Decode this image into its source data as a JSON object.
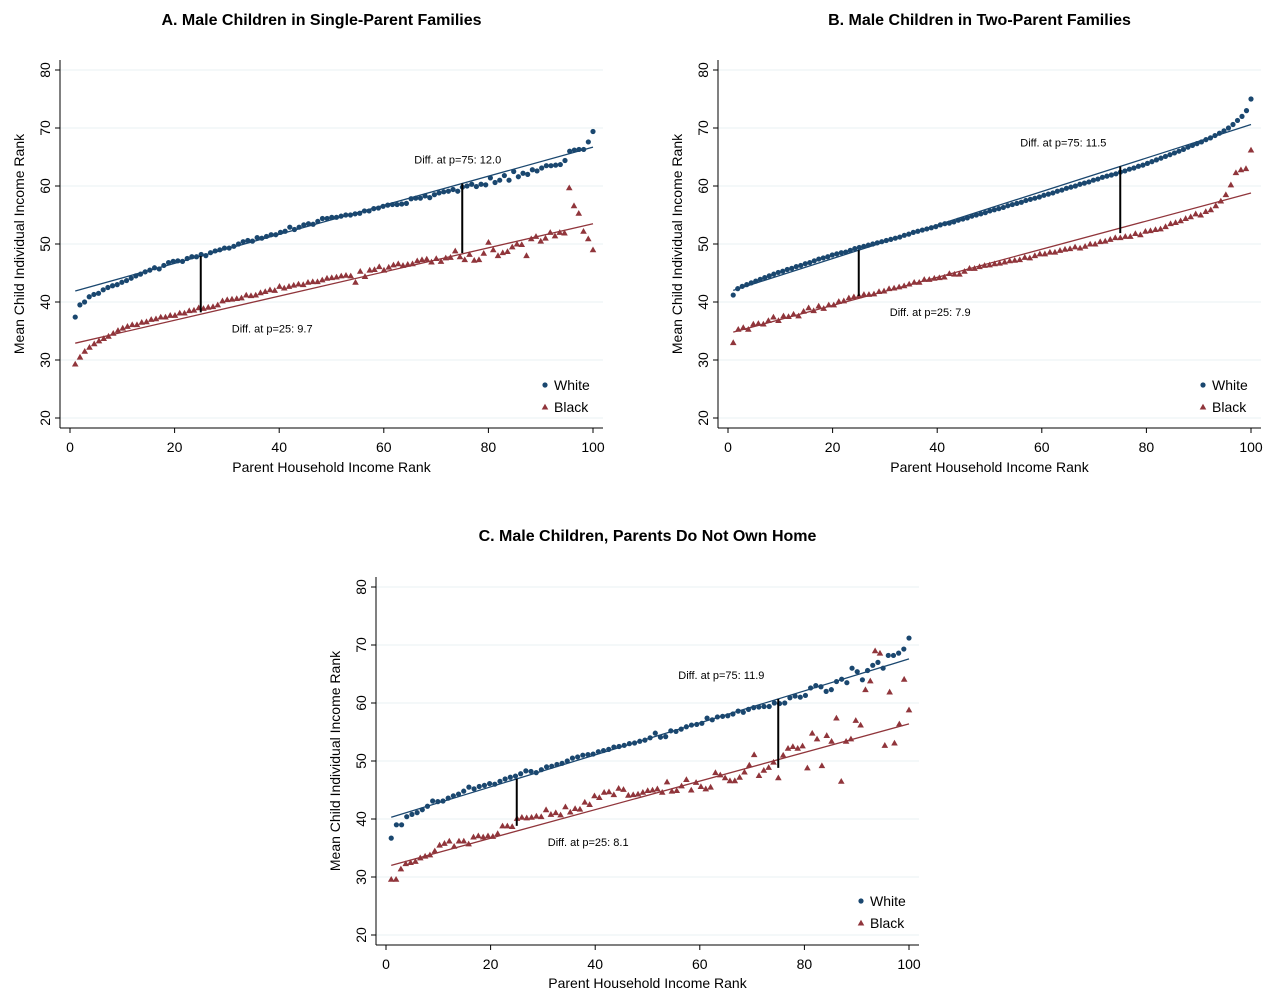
{
  "styles": {
    "white_color": "#1a476f",
    "black_color": "#90353b",
    "grid_color": "#eaf2f3",
    "gap_color": "#000000"
  },
  "chart_data": [
    {
      "type": "scatter",
      "title": "A. Male Children in Single-Parent Families",
      "xlabel": "Parent Household Income Rank",
      "ylabel": "Mean Child Individual Income Rank",
      "xlim": [
        0,
        100
      ],
      "ylim": [
        20,
        80
      ],
      "xticks": [
        0,
        20,
        40,
        60,
        80,
        100
      ],
      "yticks": [
        20,
        30,
        40,
        50,
        60,
        70,
        80
      ],
      "grid": true,
      "legend": "bottom-right",
      "series": [
        {
          "name": "White",
          "marker": "circle",
          "fit": [
            41.9,
            66.7
          ],
          "values": [
            37.4,
            39.5,
            40.0,
            40.9,
            41.3,
            41.5,
            42.1,
            42.5,
            42.8,
            43.0,
            43.4,
            43.7,
            44.1,
            44.5,
            44.8,
            45.2,
            45.5,
            45.9,
            45.7,
            46.3,
            46.8,
            47.0,
            47.1,
            47.0,
            47.5,
            47.8,
            47.8,
            48.2,
            48.0,
            48.5,
            48.8,
            49.0,
            49.3,
            49.3,
            49.6,
            50.0,
            50.4,
            50.6,
            50.5,
            51.1,
            51.0,
            51.3,
            51.6,
            51.6,
            52.0,
            52.2,
            52.9,
            52.5,
            52.9,
            53.3,
            53.5,
            53.4,
            53.9,
            54.4,
            54.4,
            54.6,
            54.6,
            54.8,
            55.0,
            55.0,
            55.2,
            55.3,
            55.7,
            55.7,
            56.1,
            56.2,
            56.5,
            56.7,
            56.8,
            56.8,
            56.9,
            57.0,
            57.8,
            57.9,
            57.9,
            58.3,
            58.0,
            58.5,
            58.8,
            59.0,
            59.1,
            59.4,
            59.1,
            59.8,
            60.0,
            60.3,
            59.9,
            60.3,
            60.2,
            61.4,
            60.6,
            61.0,
            61.8,
            61.0,
            62.5,
            61.6,
            62.2,
            62.0,
            62.8,
            62.6,
            63.1,
            63.5,
            63.5,
            63.6,
            63.7,
            64.4,
            66.0,
            66.2,
            66.3,
            66.3,
            67.6,
            69.4
          ]
        },
        {
          "name": "Black",
          "marker": "triangle",
          "fit": [
            32.9,
            53.5
          ],
          "values": [
            29.3,
            30.5,
            31.5,
            32.2,
            32.8,
            33.3,
            33.7,
            34.1,
            34.6,
            35.1,
            35.5,
            35.8,
            36.1,
            36.1,
            36.5,
            36.6,
            37.0,
            37.1,
            37.4,
            37.4,
            37.7,
            37.7,
            38.1,
            38.1,
            38.5,
            38.6,
            39.0,
            38.9,
            39.1,
            39.2,
            39.5,
            40.2,
            40.4,
            40.5,
            40.6,
            40.7,
            41.2,
            41.1,
            41.2,
            41.6,
            41.8,
            42.1,
            42.0,
            42.7,
            42.4,
            42.7,
            42.9,
            43.1,
            43.0,
            43.4,
            43.5,
            43.5,
            43.8,
            44.1,
            44.2,
            44.3,
            44.5,
            44.6,
            44.5,
            43.4,
            45.3,
            44.4,
            45.5,
            45.6,
            46.1,
            45.5,
            46.0,
            46.4,
            46.6,
            46.3,
            46.5,
            46.6,
            47.1,
            47.3,
            47.4,
            46.9,
            47.5,
            47.0,
            47.6,
            47.7,
            48.8,
            47.8,
            47.3,
            48.2,
            47.2,
            47.3,
            48.4,
            50.3,
            49.0,
            48.0,
            48.5,
            48.7,
            49.5,
            50.0,
            49.9,
            48.0,
            50.9,
            51.3,
            50.5,
            51.0,
            52.0,
            51.4,
            52.0,
            51.9,
            59.7,
            56.6,
            55.3,
            52.2,
            50.9,
            49.0
          ]
        }
      ],
      "annotations": [
        {
          "at": 75,
          "text": "Diff. at p=75: 12.0",
          "gap": 12.0,
          "pos": "above"
        },
        {
          "at": 25,
          "text": "Diff. at p=25:  9.7",
          "gap": 9.7,
          "pos": "below"
        }
      ]
    },
    {
      "type": "scatter",
      "title": "B. Male Children in Two-Parent Families",
      "xlabel": "Parent Household Income Rank",
      "ylabel": "Mean Child Individual Income Rank",
      "xlim": [
        0,
        100
      ],
      "ylim": [
        20,
        80
      ],
      "xticks": [
        0,
        20,
        40,
        60,
        80,
        100
      ],
      "yticks": [
        20,
        30,
        40,
        50,
        60,
        70,
        80
      ],
      "grid": true,
      "legend": "bottom-right",
      "series": [
        {
          "name": "White",
          "marker": "circle",
          "fit": [
            42.0,
            70.6
          ],
          "values": [
            41.2,
            42.3,
            42.7,
            43.0,
            43.3,
            43.6,
            43.9,
            44.2,
            44.5,
            44.8,
            45.1,
            45.3,
            45.6,
            45.8,
            46.1,
            46.3,
            46.6,
            46.8,
            47.1,
            47.4,
            47.6,
            47.8,
            48.1,
            48.3,
            48.5,
            48.6,
            48.9,
            49.2,
            49.4,
            49.6,
            49.8,
            50.0,
            50.2,
            50.4,
            50.6,
            50.8,
            51.0,
            51.2,
            51.5,
            51.7,
            52.0,
            52.2,
            52.4,
            52.6,
            52.8,
            53.0,
            53.3,
            53.5,
            53.6,
            53.8,
            54.1,
            54.3,
            54.5,
            54.8,
            55.0,
            55.2,
            55.4,
            55.7,
            55.9,
            56.1,
            56.3,
            56.6,
            56.8,
            57.0,
            57.2,
            57.5,
            57.7,
            57.9,
            58.1,
            58.4,
            58.6,
            58.8,
            59.1,
            59.3,
            59.6,
            59.8,
            60.0,
            60.3,
            60.5,
            60.7,
            61.0,
            61.2,
            61.5,
            61.7,
            61.9,
            62.1,
            62.4,
            62.6,
            62.9,
            63.1,
            63.4,
            63.6,
            63.9,
            64.2,
            64.5,
            64.8,
            65.1,
            65.4,
            65.7,
            66.0,
            66.3,
            66.7,
            67.0,
            67.3,
            67.6,
            68.0,
            68.3,
            68.7,
            69.1,
            69.5,
            70.0,
            70.6,
            71.3,
            72.0,
            73.0,
            75.0
          ]
        },
        {
          "name": "Black",
          "marker": "triangle",
          "fit": [
            34.8,
            58.8
          ],
          "values": [
            33.0,
            35.3,
            35.6,
            35.3,
            36.2,
            36.3,
            36.2,
            36.8,
            37.4,
            36.8,
            37.6,
            37.5,
            37.9,
            37.6,
            38.4,
            39.0,
            38.5,
            39.3,
            38.9,
            39.5,
            39.5,
            40.1,
            40.2,
            40.7,
            40.9,
            41.1,
            41.3,
            41.3,
            41.4,
            41.8,
            41.9,
            42.3,
            42.4,
            42.6,
            42.8,
            43.1,
            43.4,
            43.4,
            43.9,
            43.9,
            44.1,
            44.2,
            44.3,
            44.9,
            44.8,
            44.8,
            45.3,
            45.8,
            45.8,
            46.1,
            46.3,
            46.4,
            46.6,
            46.7,
            46.9,
            47.1,
            47.2,
            47.3,
            47.7,
            47.6,
            48.0,
            48.3,
            48.3,
            48.6,
            48.6,
            48.9,
            49.1,
            49.2,
            49.5,
            49.3,
            49.6,
            50.0,
            50.0,
            50.4,
            50.5,
            50.8,
            51.1,
            51.1,
            51.3,
            51.3,
            51.8,
            51.6,
            52.2,
            52.3,
            52.5,
            52.6,
            53.0,
            53.5,
            53.7,
            54.0,
            54.4,
            54.7,
            55.2,
            55.0,
            55.6,
            55.9,
            56.6,
            57.4,
            58.5,
            60.2,
            62.3,
            62.8,
            63.0,
            66.2
          ]
        }
      ],
      "annotations": [
        {
          "at": 75,
          "text": "Diff. at p=75: 11.5",
          "gap": 11.5,
          "pos": "above"
        },
        {
          "at": 25,
          "text": "Diff. at p=25:  7.9",
          "gap": 7.9,
          "pos": "below"
        }
      ]
    },
    {
      "type": "scatter",
      "title": "C. Male Children, Parents Do Not Own Home",
      "xlabel": "Parent Household Income Rank",
      "ylabel": "Mean Child Individual Income Rank",
      "xlim": [
        0,
        100
      ],
      "ylim": [
        20,
        80
      ],
      "xticks": [
        0,
        20,
        40,
        60,
        80,
        100
      ],
      "yticks": [
        20,
        30,
        40,
        50,
        60,
        70,
        80
      ],
      "grid": true,
      "legend": "bottom-right",
      "series": [
        {
          "name": "White",
          "marker": "circle",
          "fit": [
            40.3,
            67.6
          ],
          "values": [
            36.7,
            39.0,
            39.0,
            40.4,
            40.8,
            41.1,
            41.6,
            42.2,
            43.1,
            43.0,
            43.1,
            43.6,
            44.0,
            44.3,
            44.8,
            45.5,
            45.2,
            45.6,
            45.8,
            46.1,
            46.0,
            46.5,
            46.9,
            47.2,
            47.4,
            47.8,
            48.3,
            48.2,
            48.0,
            48.5,
            49.0,
            49.1,
            49.4,
            49.6,
            50.0,
            50.5,
            50.7,
            51.0,
            51.1,
            51.2,
            51.6,
            51.8,
            52.0,
            52.4,
            52.5,
            52.7,
            53.0,
            53.1,
            53.4,
            53.6,
            54.0,
            54.8,
            54.1,
            54.2,
            55.2,
            55.1,
            55.5,
            55.9,
            56.2,
            56.3,
            56.5,
            57.4,
            57.1,
            57.6,
            57.7,
            57.8,
            58.1,
            58.6,
            58.4,
            58.9,
            59.2,
            59.3,
            59.4,
            59.4,
            60.0,
            59.9,
            60.0,
            60.9,
            61.2,
            61.0,
            61.3,
            62.6,
            63.0,
            62.8,
            62.0,
            62.3,
            63.7,
            64.1,
            63.5,
            66.0,
            65.4,
            64.0,
            65.6,
            66.5,
            67.0,
            66.0,
            68.2,
            68.2,
            68.6,
            69.3,
            71.2
          ]
        },
        {
          "name": "Black",
          "marker": "triangle",
          "fit": [
            32.0,
            56.4
          ],
          "values": [
            29.6,
            29.6,
            31.4,
            32.3,
            32.5,
            32.7,
            33.3,
            33.6,
            33.8,
            34.5,
            35.5,
            35.8,
            36.2,
            35.3,
            36.2,
            36.2,
            35.7,
            36.9,
            37.1,
            36.9,
            37.1,
            37.0,
            37.5,
            38.8,
            38.8,
            38.7,
            40.1,
            40.3,
            40.2,
            40.3,
            40.5,
            40.4,
            41.6,
            40.8,
            41.1,
            40.7,
            42.1,
            41.2,
            41.8,
            41.7,
            42.9,
            42.5,
            44.0,
            43.7,
            44.6,
            44.7,
            44.2,
            45.3,
            45.1,
            44.1,
            44.2,
            44.3,
            44.6,
            44.9,
            45.0,
            45.2,
            44.6,
            46.4,
            44.8,
            44.9,
            45.7,
            46.8,
            45.0,
            46.3,
            45.6,
            45.2,
            45.5,
            48.0,
            47.6,
            47.1,
            46.6,
            46.6,
            47.2,
            48.1,
            49.3,
            51.1,
            47.5,
            48.4,
            48.9,
            49.8,
            47.1,
            51.0,
            52.2,
            52.5,
            52.2,
            52.6,
            48.8,
            54.8,
            53.8,
            49.2,
            54.4,
            53.4,
            57.4,
            46.5,
            53.4,
            53.8,
            57.0,
            56.2,
            62.3,
            63.8,
            69.0,
            68.6,
            52.7,
            61.9,
            53.1,
            56.4,
            64.1,
            58.8
          ]
        }
      ],
      "annotations": [
        {
          "at": 75,
          "text": "Diff. at p=75: 11.9",
          "gap": 11.9,
          "pos": "above"
        },
        {
          "at": 25,
          "text": "Diff. at p=25:  8.1",
          "gap": 8.1,
          "pos": "below"
        }
      ]
    }
  ]
}
